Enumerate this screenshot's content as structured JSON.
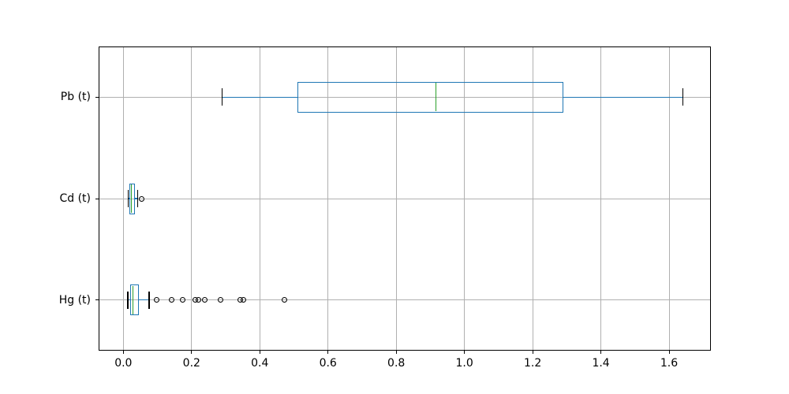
{
  "chart_data": {
    "type": "boxplot",
    "orientation": "horizontal",
    "title": "",
    "xlabel": "",
    "ylabel": "",
    "xlim": [
      -0.0725,
      1.7225
    ],
    "ylim": [
      0.5,
      3.5
    ],
    "grid": true,
    "legend": false,
    "categories": [
      "Pb (t)",
      "Cd (t)",
      "Hg (t)"
    ],
    "x_ticks": [
      "0.0",
      "0.2",
      "0.4",
      "0.6",
      "0.8",
      "1.0",
      "1.2",
      "1.4",
      "1.6"
    ],
    "x_tick_values": [
      0.0,
      0.2,
      0.4,
      0.6,
      0.8,
      1.0,
      1.2,
      1.4,
      1.6
    ],
    "series": [
      {
        "name": "Pb (t)",
        "position": 3,
        "whislo": 0.29,
        "q1": 0.513,
        "med": 0.916,
        "q3": 1.288,
        "whishi": 1.64,
        "fliers": []
      },
      {
        "name": "Cd (t)",
        "position": 2,
        "whislo": 0.014,
        "q1": 0.019,
        "med": 0.023,
        "q3": 0.033,
        "whishi": 0.042,
        "fliers": [
          0.053
        ]
      },
      {
        "name": "Hg (t)",
        "position": 1,
        "whislo": 0.013,
        "q1": 0.021,
        "med": 0.028,
        "q3": 0.044,
        "whishi": 0.076,
        "fliers": [
          0.097,
          0.141,
          0.174,
          0.21,
          0.221,
          0.238,
          0.285,
          0.343,
          0.352,
          0.472
        ]
      }
    ],
    "style": {
      "box_color": "#1f77b4",
      "whisker_color": "#1f77b4",
      "cap_color": "#000000",
      "median_color": "#2ca02c",
      "flier_color": "#000000",
      "grid_color": "#b0b0b0",
      "spine_color": "#000000",
      "background": "#ffffff",
      "box_width_units": 0.3
    }
  }
}
